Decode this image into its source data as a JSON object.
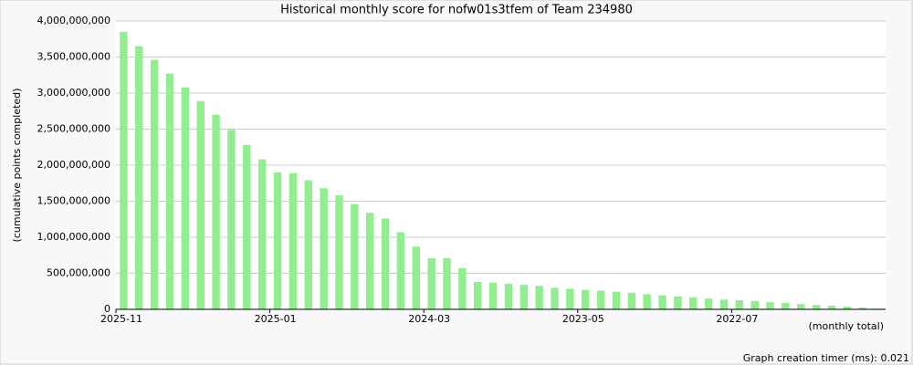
{
  "chart_data": {
    "type": "bar",
    "title": "Historical monthly score for nofw01s3tfem of Team 234980",
    "y_label": "(cumulative points completed)",
    "x_label": "(monthly total)",
    "footer": "Graph creation timer (ms): 0.021",
    "color": "#90ee90",
    "grid": true,
    "categories": [
      "2025-11",
      null,
      null,
      null,
      null,
      null,
      null,
      null,
      null,
      null,
      "2025-01",
      null,
      null,
      null,
      null,
      null,
      null,
      null,
      null,
      null,
      "2024-03",
      null,
      null,
      null,
      null,
      null,
      null,
      null,
      null,
      null,
      "2023-05",
      null,
      null,
      null,
      null,
      null,
      null,
      null,
      null,
      null,
      "2022-07",
      null,
      null,
      null,
      null,
      null,
      null,
      null,
      null,
      null
    ],
    "values": [
      3850000000,
      3650000000,
      3460000000,
      3270000000,
      3080000000,
      2890000000,
      2700000000,
      2490000000,
      2280000000,
      2080000000,
      1900000000,
      1890000000,
      1790000000,
      1680000000,
      1580000000,
      1460000000,
      1340000000,
      1260000000,
      1070000000,
      870000000,
      710000000,
      710000000,
      570000000,
      380000000,
      370000000,
      355000000,
      340000000,
      325000000,
      300000000,
      285000000,
      270000000,
      260000000,
      245000000,
      230000000,
      210000000,
      195000000,
      180000000,
      165000000,
      150000000,
      135000000,
      125000000,
      115000000,
      100000000,
      90000000,
      75000000,
      60000000,
      50000000,
      40000000,
      25000000,
      10000000
    ],
    "ylim": [
      0,
      4000000000
    ],
    "yticks": [
      0,
      {
        "value": 500000000,
        "label": "500,000,000"
      },
      {
        "value": 1000000000,
        "label": "1,000,000,000"
      },
      {
        "value": 1500000000,
        "label": "1,500,000,000"
      },
      {
        "value": 2000000000,
        "label": "2,000,000,000"
      },
      {
        "value": 2500000000,
        "label": "2,500,000,000"
      },
      {
        "value": 3000000000,
        "label": "3,000,000,000"
      },
      {
        "value": 3500000000,
        "label": "3,500,000,000"
      },
      {
        "value": 4000000000,
        "label": "4,000,000,000"
      }
    ]
  }
}
